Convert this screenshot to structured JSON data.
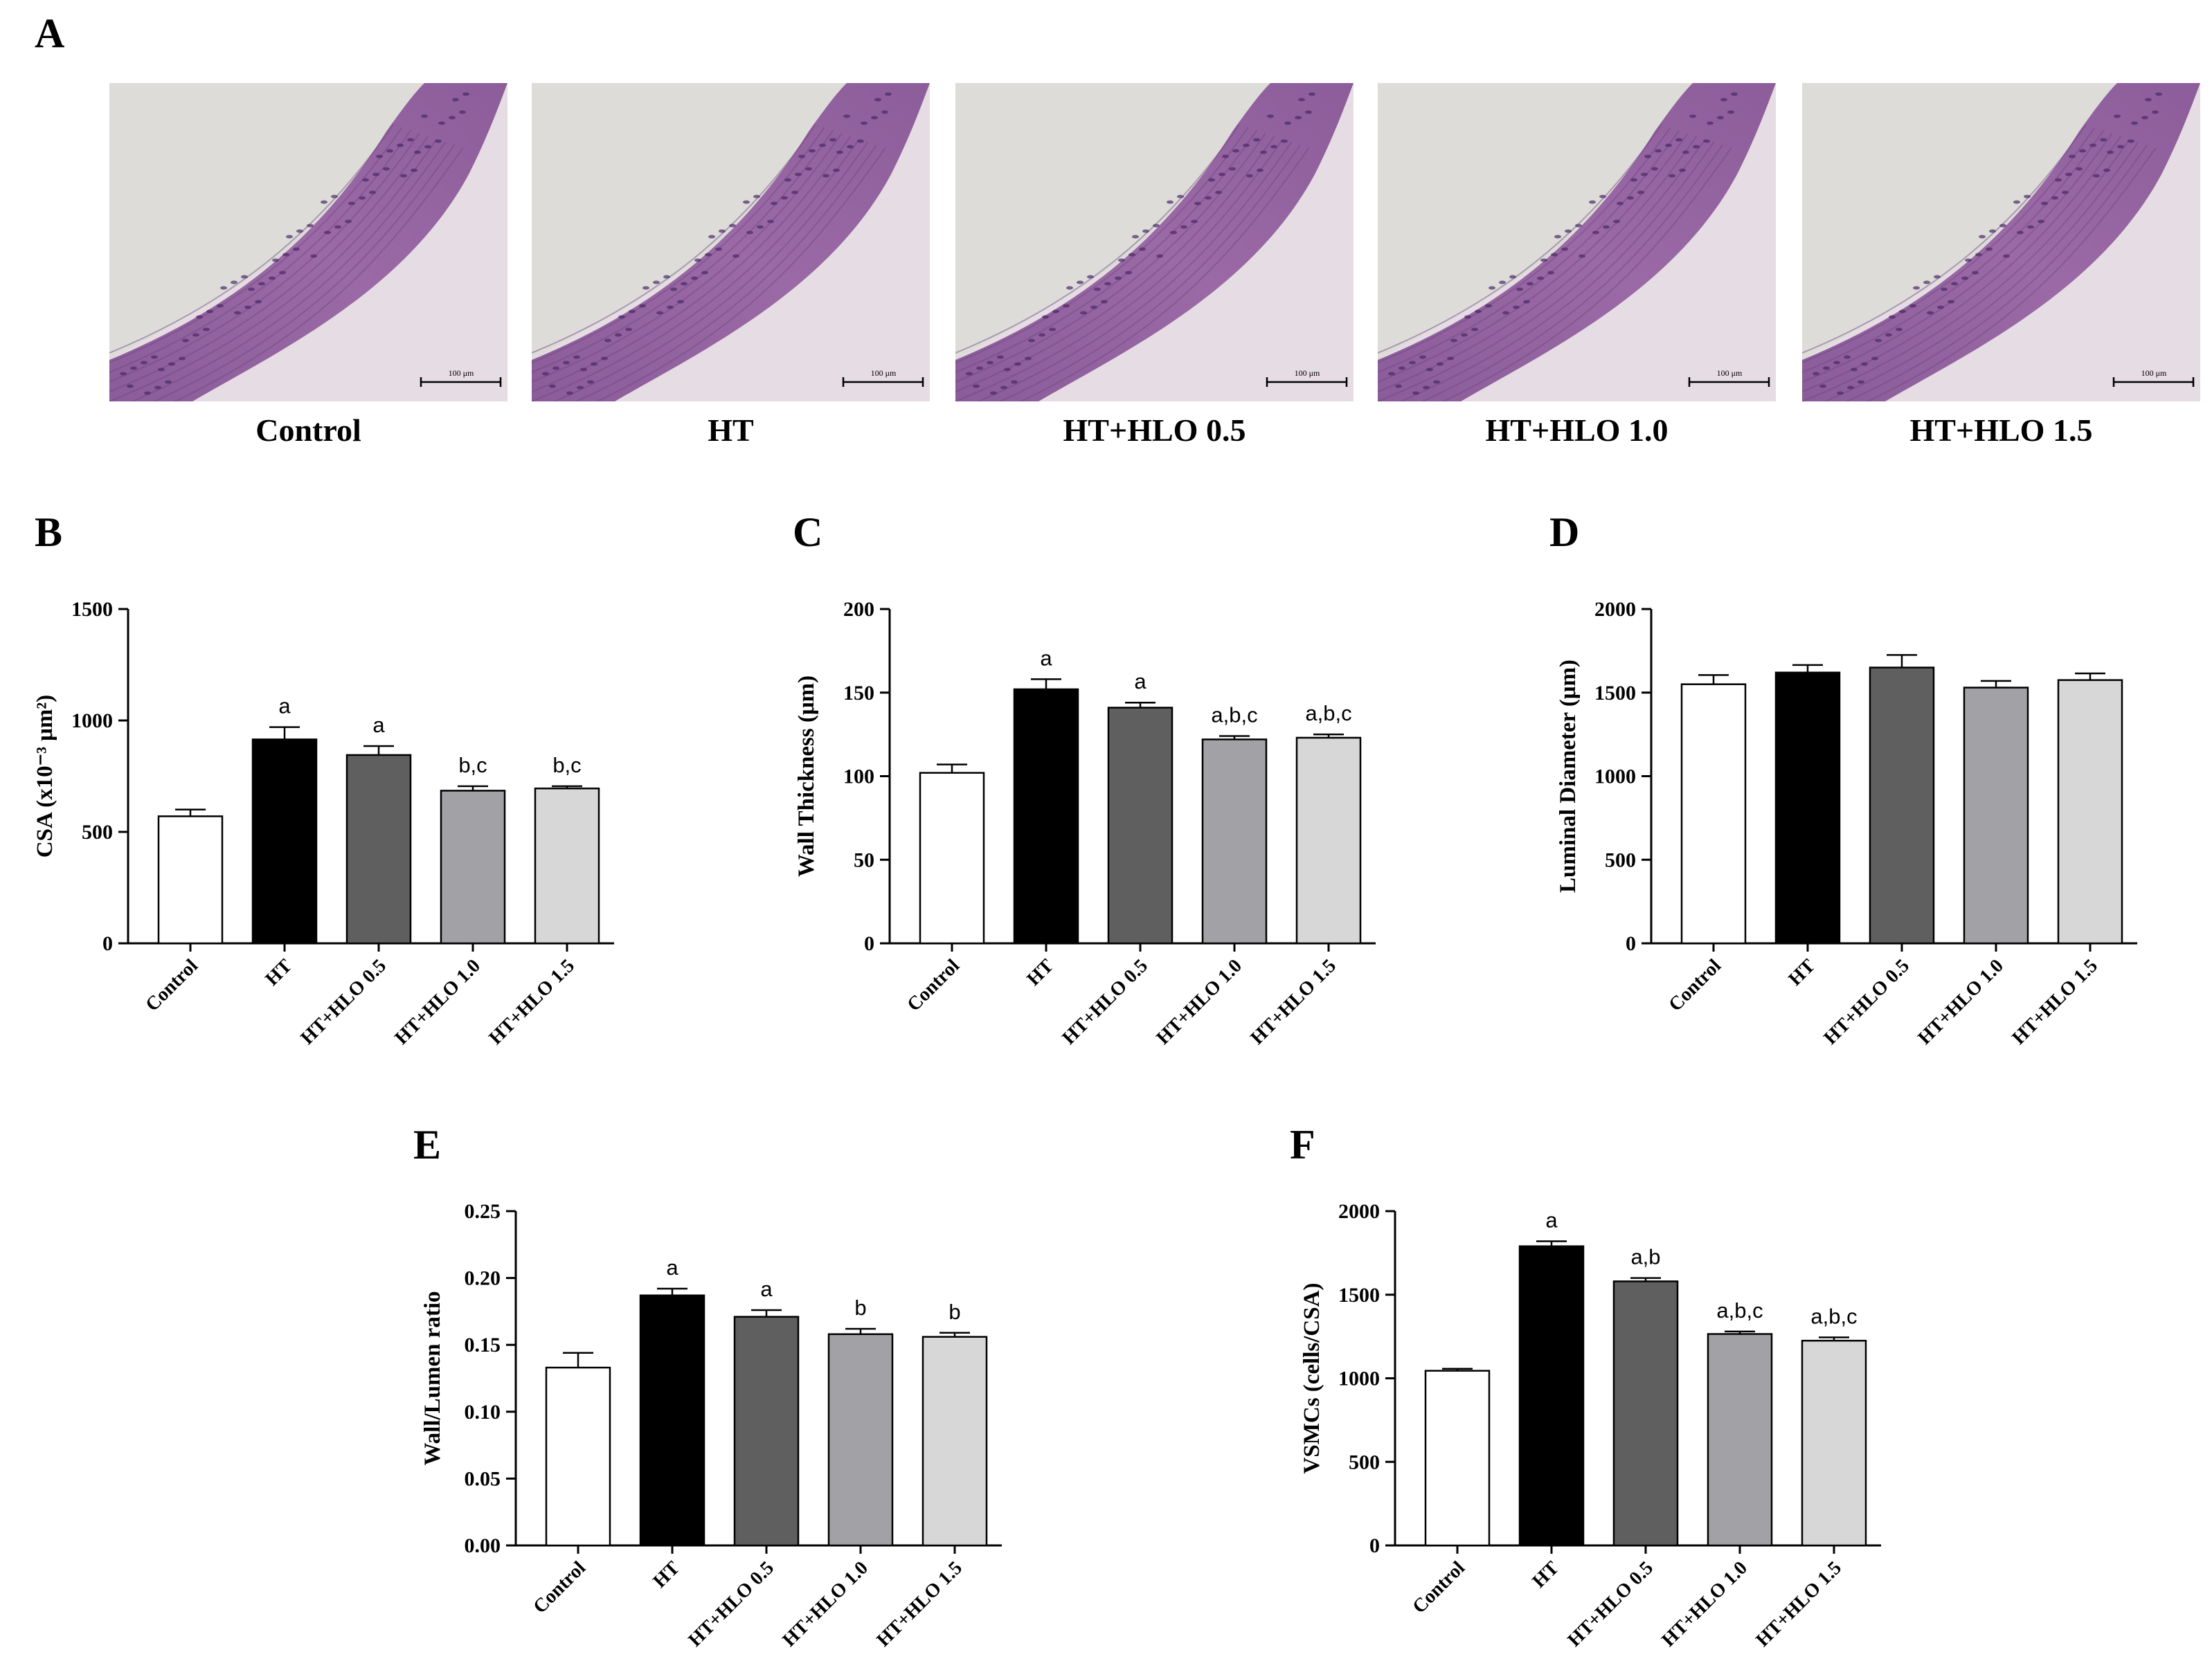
{
  "panel_a": {
    "letter": "A",
    "images": [
      {
        "caption": "Control",
        "scale_label": "100 μm"
      },
      {
        "caption": "HT",
        "scale_label": "100 μm"
      },
      {
        "caption": "HT+HLO 0.5",
        "scale_label": "100 μm"
      },
      {
        "caption": "HT+HLO 1.0",
        "scale_label": "100 μm"
      },
      {
        "caption": "HT+HLO 1.5",
        "scale_label": "100 μm"
      }
    ]
  },
  "colors": {
    "Control": "#ffffff",
    "HT": "#000000",
    "HT+HLO 0.5": "#5f5f5f",
    "HT+HLO 1.0": "#a2a2a6",
    "HT+HLO 1.5": "#d7d7d7"
  },
  "chart_data": [
    {
      "id": "B",
      "letter": "B",
      "type": "bar",
      "ylabel": "CSA (x10⁻³ μm²)",
      "ylim": [
        0,
        1500
      ],
      "yticks": [
        0,
        500,
        1000,
        1500
      ],
      "categories": [
        "Control",
        "HT",
        "HT+HLO 0.5",
        "HT+HLO 1.0",
        "HT+HLO 1.5"
      ],
      "values": [
        570,
        915,
        845,
        685,
        695
      ],
      "errors": [
        30,
        55,
        40,
        20,
        10
      ],
      "annotations": [
        "",
        "a",
        "a",
        "b,c",
        "b,c"
      ]
    },
    {
      "id": "C",
      "letter": "C",
      "type": "bar",
      "ylabel": "Wall Thickness (μm)",
      "ylim": [
        0,
        200
      ],
      "yticks": [
        0,
        50,
        100,
        150,
        200
      ],
      "categories": [
        "Control",
        "HT",
        "HT+HLO 0.5",
        "HT+HLO 1.0",
        "HT+HLO 1.5"
      ],
      "values": [
        102,
        152,
        141,
        122,
        123
      ],
      "errors": [
        5,
        6,
        3,
        2,
        2
      ],
      "annotations": [
        "",
        "a",
        "a",
        "a,b,c",
        "a,b,c"
      ]
    },
    {
      "id": "D",
      "letter": "D",
      "type": "bar",
      "ylabel": "Luminal Diameter (μm)",
      "ylim": [
        0,
        2000
      ],
      "yticks": [
        0,
        500,
        1000,
        1500,
        2000
      ],
      "categories": [
        "Control",
        "HT",
        "HT+HLO 0.5",
        "HT+HLO 1.0",
        "HT+HLO 1.5"
      ],
      "values": [
        1550,
        1620,
        1650,
        1530,
        1575
      ],
      "errors": [
        55,
        45,
        75,
        40,
        40
      ],
      "annotations": [
        "",
        "",
        "",
        "",
        ""
      ]
    },
    {
      "id": "E",
      "letter": "E",
      "type": "bar",
      "ylabel": "Wall/Lumen ratio",
      "ylim": [
        0,
        0.25
      ],
      "yticks": [
        0,
        0.05,
        0.1,
        0.15,
        0.2,
        0.25
      ],
      "ytick_labels": [
        "0.00",
        "0.05",
        "0.10",
        "0.15",
        "0.20",
        "0.25"
      ],
      "categories": [
        "Control",
        "HT",
        "HT+HLO 0.5",
        "HT+HLO 1.0",
        "HT+HLO 1.5"
      ],
      "values": [
        0.133,
        0.187,
        0.171,
        0.158,
        0.156
      ],
      "errors": [
        0.011,
        0.005,
        0.005,
        0.004,
        0.003
      ],
      "annotations": [
        "",
        "a",
        "a",
        "b",
        "b"
      ]
    },
    {
      "id": "F",
      "letter": "F",
      "type": "bar",
      "ylabel": "VSMCs (cells/CSA)",
      "ylim": [
        0,
        2000
      ],
      "yticks": [
        0,
        500,
        1000,
        1500,
        2000
      ],
      "categories": [
        "Control",
        "HT",
        "HT+HLO 0.5",
        "HT+HLO 1.0",
        "HT+HLO 1.5"
      ],
      "values": [
        1045,
        1790,
        1580,
        1265,
        1225
      ],
      "errors": [
        12,
        30,
        20,
        15,
        20
      ],
      "annotations": [
        "",
        "a",
        "a,b",
        "a,b,c",
        "a,b,c"
      ]
    }
  ]
}
